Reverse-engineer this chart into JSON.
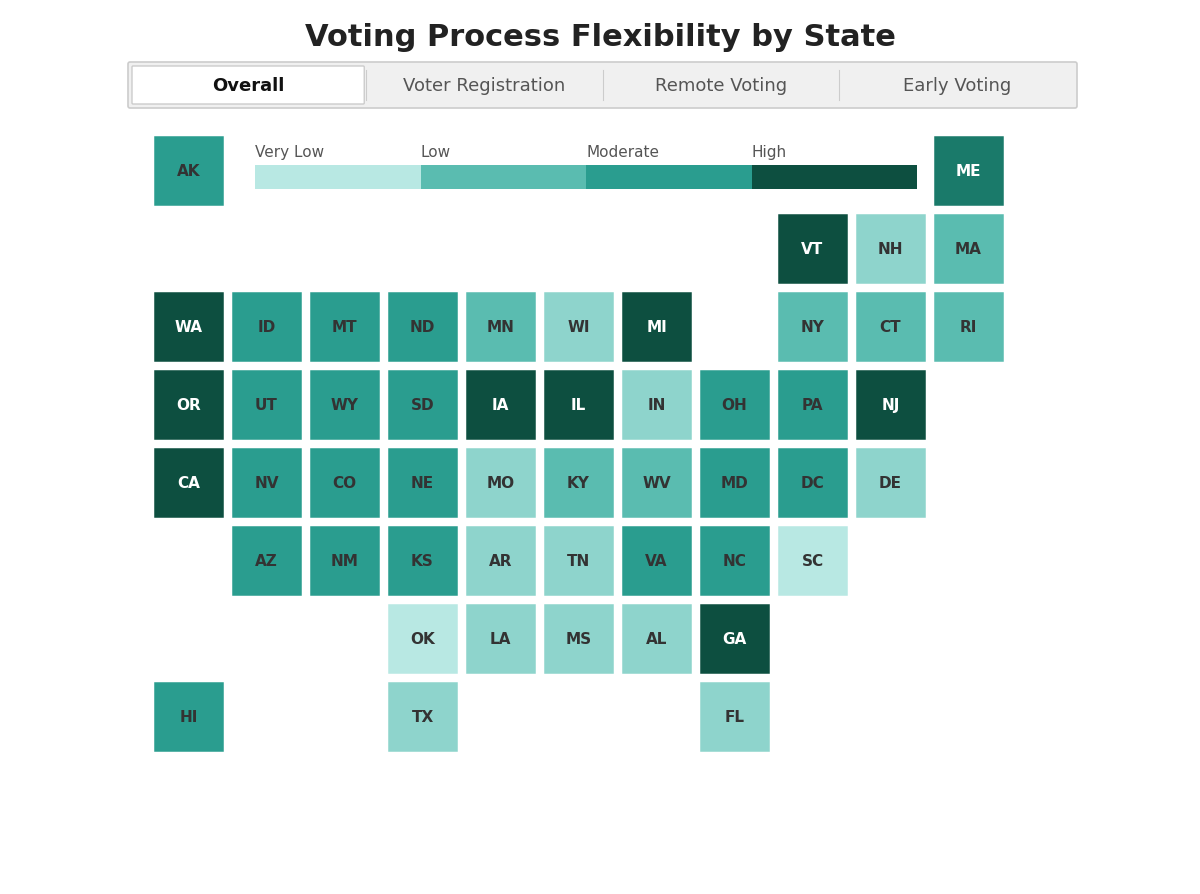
{
  "title": "Voting Process Flexibility by State",
  "tabs": [
    "Overall",
    "Voter Registration",
    "Remote Voting",
    "Early Voting"
  ],
  "active_tab": 0,
  "legend_labels": [
    "Very Low",
    "Low",
    "Moderate",
    "High"
  ],
  "legend_colors": [
    "#b8e8e3",
    "#5abcb0",
    "#2a9d8f",
    "#0d4f40"
  ],
  "background_color": "#ffffff",
  "states": {
    "AK": {
      "col": 0,
      "row": 0,
      "color": "#2a9d8f"
    },
    "ME": {
      "col": 10,
      "row": 0,
      "color": "#1a7a6a"
    },
    "VT": {
      "col": 8,
      "row": 1,
      "color": "#0d4f40"
    },
    "NH": {
      "col": 9,
      "row": 1,
      "color": "#8ed4cc"
    },
    "MA": {
      "col": 10,
      "row": 1,
      "color": "#5abcb0"
    },
    "WA": {
      "col": 0,
      "row": 2,
      "color": "#0d4f40"
    },
    "ID": {
      "col": 1,
      "row": 2,
      "color": "#2a9d8f"
    },
    "MT": {
      "col": 2,
      "row": 2,
      "color": "#2a9d8f"
    },
    "ND": {
      "col": 3,
      "row": 2,
      "color": "#2a9d8f"
    },
    "MN": {
      "col": 4,
      "row": 2,
      "color": "#5abcb0"
    },
    "WI": {
      "col": 5,
      "row": 2,
      "color": "#8ed4cc"
    },
    "MI": {
      "col": 6,
      "row": 2,
      "color": "#0d4f40"
    },
    "NY": {
      "col": 8,
      "row": 2,
      "color": "#5abcb0"
    },
    "CT": {
      "col": 9,
      "row": 2,
      "color": "#5abcb0"
    },
    "RI": {
      "col": 10,
      "row": 2,
      "color": "#5abcb0"
    },
    "OR": {
      "col": 0,
      "row": 3,
      "color": "#0d4f40"
    },
    "UT": {
      "col": 1,
      "row": 3,
      "color": "#2a9d8f"
    },
    "WY": {
      "col": 2,
      "row": 3,
      "color": "#2a9d8f"
    },
    "SD": {
      "col": 3,
      "row": 3,
      "color": "#2a9d8f"
    },
    "IA": {
      "col": 4,
      "row": 3,
      "color": "#0d4f40"
    },
    "IL": {
      "col": 5,
      "row": 3,
      "color": "#0d4f40"
    },
    "IN": {
      "col": 6,
      "row": 3,
      "color": "#8ed4cc"
    },
    "OH": {
      "col": 7,
      "row": 3,
      "color": "#2a9d8f"
    },
    "PA": {
      "col": 8,
      "row": 3,
      "color": "#2a9d8f"
    },
    "NJ": {
      "col": 9,
      "row": 3,
      "color": "#0d4f40"
    },
    "CA": {
      "col": 0,
      "row": 4,
      "color": "#0d4f40"
    },
    "NV": {
      "col": 1,
      "row": 4,
      "color": "#2a9d8f"
    },
    "CO": {
      "col": 2,
      "row": 4,
      "color": "#2a9d8f"
    },
    "NE": {
      "col": 3,
      "row": 4,
      "color": "#2a9d8f"
    },
    "MO": {
      "col": 4,
      "row": 4,
      "color": "#8ed4cc"
    },
    "KY": {
      "col": 5,
      "row": 4,
      "color": "#5abcb0"
    },
    "WV": {
      "col": 6,
      "row": 4,
      "color": "#5abcb0"
    },
    "MD": {
      "col": 7,
      "row": 4,
      "color": "#2a9d8f"
    },
    "DC": {
      "col": 8,
      "row": 4,
      "color": "#2a9d8f"
    },
    "DE": {
      "col": 9,
      "row": 4,
      "color": "#8ed4cc"
    },
    "AZ": {
      "col": 1,
      "row": 5,
      "color": "#2a9d8f"
    },
    "NM": {
      "col": 2,
      "row": 5,
      "color": "#2a9d8f"
    },
    "KS": {
      "col": 3,
      "row": 5,
      "color": "#2a9d8f"
    },
    "AR": {
      "col": 4,
      "row": 5,
      "color": "#8ed4cc"
    },
    "TN": {
      "col": 5,
      "row": 5,
      "color": "#8ed4cc"
    },
    "VA": {
      "col": 6,
      "row": 5,
      "color": "#2a9d8f"
    },
    "NC": {
      "col": 7,
      "row": 5,
      "color": "#2a9d8f"
    },
    "SC": {
      "col": 8,
      "row": 5,
      "color": "#b8e8e3"
    },
    "OK": {
      "col": 3,
      "row": 6,
      "color": "#b8e8e3"
    },
    "LA": {
      "col": 4,
      "row": 6,
      "color": "#8ed4cc"
    },
    "MS": {
      "col": 5,
      "row": 6,
      "color": "#8ed4cc"
    },
    "AL": {
      "col": 6,
      "row": 6,
      "color": "#8ed4cc"
    },
    "GA": {
      "col": 7,
      "row": 6,
      "color": "#0d4f40"
    },
    "HI": {
      "col": 0,
      "row": 7,
      "color": "#2a9d8f"
    },
    "TX": {
      "col": 3,
      "row": 7,
      "color": "#8ed4cc"
    },
    "FL": {
      "col": 7,
      "row": 7,
      "color": "#8ed4cc"
    }
  }
}
